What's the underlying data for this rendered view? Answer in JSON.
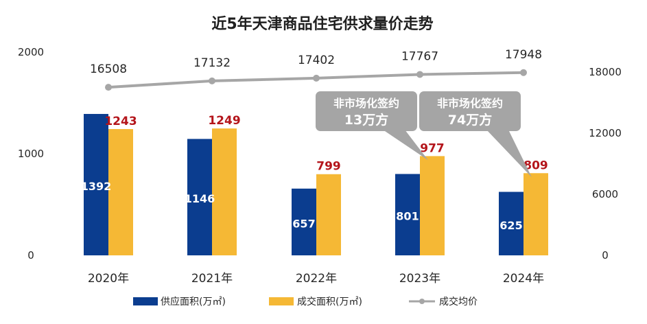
{
  "chart_data": {
    "type": "bar",
    "title": "近5年天津商品住宅供求量价走势",
    "categories": [
      "2020年",
      "2021年",
      "2022年",
      "2023年",
      "2024年"
    ],
    "series": [
      {
        "name": "供应面积(万㎡)",
        "kind": "bar",
        "axis": "left",
        "color": "#0b3d8f",
        "values": [
          1392,
          1146,
          657,
          801,
          625
        ]
      },
      {
        "name": "成交面积(万㎡)",
        "kind": "bar",
        "axis": "left",
        "color": "#f5b835",
        "values": [
          1243,
          1249,
          799,
          977,
          809
        ]
      },
      {
        "name": "成交均价",
        "kind": "line",
        "axis": "right",
        "color": "#a6a6a6",
        "values": [
          16508,
          17132,
          17402,
          17767,
          17948
        ]
      }
    ],
    "y_left": {
      "ylim": [
        0,
        2000
      ],
      "ticks": [
        "0",
        "1000",
        "2000"
      ]
    },
    "y_right": {
      "ylim": [
        0,
        20000
      ],
      "ticks": [
        "0",
        "6000",
        "12000",
        "18000"
      ]
    },
    "legend_placement": "bottom",
    "annotations": [
      {
        "category": "2023年",
        "line1": "非市场化签约",
        "line2": "13万方"
      },
      {
        "category": "2024年",
        "line1": "非市场化签约",
        "line2": "74万方"
      }
    ],
    "callout_color": "#a5a5a5"
  }
}
